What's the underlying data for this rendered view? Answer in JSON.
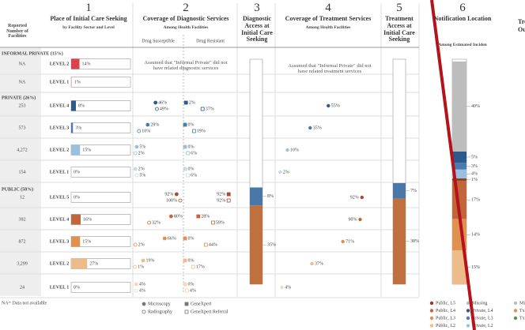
{
  "header": {
    "facilities_label": "Reported Number of Facilities"
  },
  "columns": [
    {
      "number": "1",
      "title": "Place of Initial Care Seeking",
      "subtitle": "by Facility Sector and Level"
    },
    {
      "number": "2",
      "title": "Coverage of Diagnostic Services",
      "subtitle": "Among Health Facilities",
      "sub_left": "Drug Susceptible",
      "sub_right": "Drug Resistant"
    },
    {
      "number": "3",
      "title": "Diagnostic Access at Initial Care Seeking"
    },
    {
      "number": "4",
      "title": "Coverage of Treatment Services",
      "subtitle": "Among Health Facilities"
    },
    {
      "number": "5",
      "title": "Treatment Access at Initial Care Seeking"
    },
    {
      "number": "6",
      "title": "Notification Location",
      "subtitle": "Among Estimated Inciden"
    },
    {
      "title": "Trea",
      "subtitle": "Out"
    }
  ],
  "sections": [
    {
      "name": "INFORMAL PRIVATE (15%)",
      "color": "#d9434e",
      "diag_note": "Assumed that \"Informal Private\" did not have related diagnostic services",
      "tx_note": "Assumed that \"Informal Private\" did not have related treatment services",
      "rows": [
        {
          "facilities": "NA",
          "level": "LEVEL 2",
          "color": "#d9434e",
          "care": 14,
          "care_label": "14%"
        },
        {
          "facilities": "NA",
          "level": "LEVEL 1",
          "color": "#f2a7ad",
          "care": 1,
          "care_label": "1%"
        }
      ]
    },
    {
      "name": "PRIVATE (26%)",
      "color": "#3a6ea5",
      "rows": [
        {
          "facilities": "253",
          "level": "LEVEL 4",
          "color": "#2c5a8c",
          "care": 8,
          "care_label": "8%",
          "ds": [
            46,
            49
          ],
          "ds_labels": [
            "46%",
            "49%"
          ],
          "dr": [
            2,
            37
          ],
          "dr_labels": [
            "2%",
            "37%"
          ],
          "tx": 55,
          "tx_label": "55%"
        },
        {
          "facilities": "573",
          "level": "LEVEL 3",
          "color": "#4a7ab0",
          "care": 3,
          "care_label": "3%",
          "ds": [
            29,
            10
          ],
          "ds_labels": [
            "29%",
            "10%"
          ],
          "dr": [
            0,
            19
          ],
          "dr_labels": [
            "0%",
            "19%"
          ],
          "tx": 35,
          "tx_label": "35%"
        },
        {
          "facilities": "4,272",
          "level": "LEVEL 2",
          "color": "#9dbfdf",
          "care": 15,
          "care_label": "15%",
          "ds": [
            5,
            2
          ],
          "ds_labels": [
            "5%",
            "2%"
          ],
          "dr": [
            0,
            6
          ],
          "dr_labels": [
            "0%",
            "6%"
          ],
          "tx": 10,
          "tx_label": "10%"
        },
        {
          "facilities": "154",
          "level": "LEVEL 1",
          "color": "#c4d9ec",
          "care": 0,
          "care_label": "0%",
          "ds": [
            2,
            5
          ],
          "ds_labels": [
            "2%",
            "5%"
          ],
          "dr": [
            0,
            6
          ],
          "dr_labels": [
            "0%",
            "6%"
          ],
          "tx": 2,
          "tx_label": "2%"
        }
      ]
    },
    {
      "name": "PUBLIC (58%)",
      "color": "#c0663a",
      "rows": [
        {
          "facilities": "12",
          "level": "LEVEL 5",
          "color": "#a84a2e",
          "care": 0,
          "care_label": "0%",
          "ds": [
            92,
            100
          ],
          "ds_labels": [
            "92%",
            "100%"
          ],
          "dr": [
            92,
            92
          ],
          "dr_labels": [
            "92%",
            "92%"
          ],
          "tx": 92,
          "tx_label": "92%"
        },
        {
          "facilities": "392",
          "level": "LEVEL 4",
          "color": "#c0663a",
          "care": 16,
          "care_label": "16%",
          "ds": [
            80,
            32
          ],
          "ds_labels": [
            "80%",
            "32%"
          ],
          "dr": [
            28,
            59
          ],
          "dr_labels": [
            "28%",
            "59%"
          ],
          "tx": 90,
          "tx_label": "90%"
        },
        {
          "facilities": "872",
          "level": "LEVEL 3",
          "color": "#e0904f",
          "care": 15,
          "care_label": "15%",
          "ds": [
            66,
            2
          ],
          "ds_labels": [
            "66%",
            "2%"
          ],
          "dr": [
            0,
            44
          ],
          "dr_labels": [
            "0%",
            "44%"
          ],
          "tx": 71,
          "tx_label": "71%"
        },
        {
          "facilities": "3,299",
          "level": "LEVEL 2",
          "color": "#eebc88",
          "care": 27,
          "care_label": "27%",
          "ds": [
            19,
            1
          ],
          "ds_labels": [
            "19%",
            "1%"
          ],
          "dr": [
            0,
            17
          ],
          "dr_labels": [
            "0%",
            "17%"
          ],
          "tx": 37,
          "tx_label": "37%"
        },
        {
          "facilities": "24",
          "level": "LEVEL 1",
          "color": "#f5d8b8",
          "care": 0,
          "care_label": "0%",
          "ds": [
            4,
            4
          ],
          "ds_labels": [
            "4%",
            "4%"
          ],
          "dr": [
            0,
            4
          ],
          "dr_labels": [
            "0%",
            "4%"
          ],
          "tx": 4,
          "tx_label": "4%"
        }
      ]
    }
  ],
  "diagnostic_access": [
    {
      "color": "#c0703f",
      "value": 35,
      "label": "35%"
    },
    {
      "color": "#4a77a8",
      "value": 8,
      "label": "8%"
    }
  ],
  "treatment_access": [
    {
      "color": "#c0703f",
      "value": 38,
      "label": "38%"
    },
    {
      "color": "#4a77a8",
      "value": 7,
      "label": "7%"
    }
  ],
  "notification": [
    {
      "name": "Public, L2",
      "color": "#eebc88",
      "value": 15,
      "label": "15%"
    },
    {
      "name": "Public, L3",
      "color": "#e0904f",
      "value": 14,
      "label": "14%"
    },
    {
      "name": "Public, L4",
      "color": "#c0663a",
      "value": 17,
      "label": "17%"
    },
    {
      "name": "Public, L5",
      "color": "#8e3b24",
      "value": 1,
      "label": "1%"
    },
    {
      "name": "Private, L2",
      "color": "#9dbfdf",
      "value": 4,
      "label": "4%"
    },
    {
      "name": "Private, L3",
      "color": "#4a7ab0",
      "value": 3,
      "label": "3%"
    },
    {
      "name": "Private, L4",
      "color": "#2c5a8c",
      "value": 5,
      "label": "5%"
    },
    {
      "name": "Missing",
      "color": "#bdbdbd",
      "value": 40,
      "label": "40%"
    }
  ],
  "outcome_legend": [
    {
      "name": "Mis",
      "color": "#bdbdbd"
    },
    {
      "name": "Tx U",
      "color": "#e0904f"
    },
    {
      "name": "Tx S",
      "color": "#4e9a4a"
    }
  ],
  "marker_legend": [
    "Microscopy",
    "Radiography",
    "GeneXpert",
    "GeneXpert Referral"
  ],
  "footnote": "NA= Data not available"
}
